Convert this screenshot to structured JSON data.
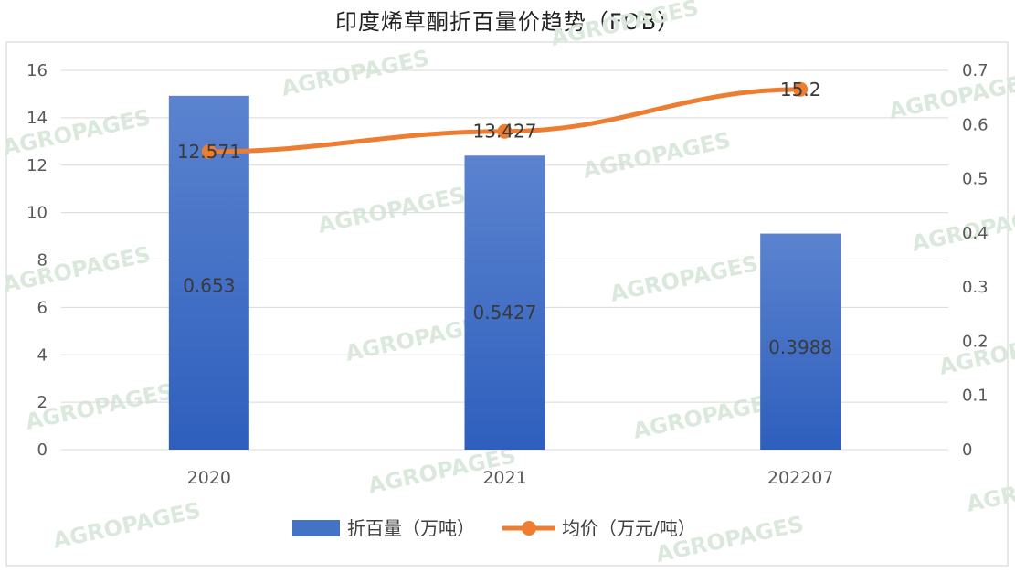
{
  "chart_data": {
    "type": "bar+line",
    "title": "印度烯草酮折百量价趋势（FOB）",
    "categories": [
      "2020",
      "2021",
      "202207"
    ],
    "series": [
      {
        "name": "折百量（万吨）",
        "type": "bar",
        "axis": "right",
        "values": [
          0.653,
          0.5427,
          0.3988
        ],
        "labels": [
          "0.653",
          "0.5427",
          "0.3988"
        ],
        "color": "#4472c4"
      },
      {
        "name": "均价（万元/吨）",
        "type": "line",
        "axis": "left",
        "values": [
          12.571,
          13.427,
          15.2
        ],
        "labels": [
          "12.571",
          "13.427",
          "15.2"
        ],
        "color": "#ed7d31"
      }
    ],
    "y_left": {
      "ylim": [
        0,
        16
      ],
      "ticks": [
        "0",
        "2",
        "4",
        "6",
        "8",
        "10",
        "12",
        "14",
        "16"
      ]
    },
    "y_right": {
      "ylim": [
        0,
        0.7
      ],
      "ticks": [
        "0",
        "0.1",
        "0.2",
        "0.3",
        "0.4",
        "0.5",
        "0.6",
        "0.7"
      ]
    },
    "grid": true,
    "legend": "bottom",
    "watermark": "AGROPAGES"
  }
}
